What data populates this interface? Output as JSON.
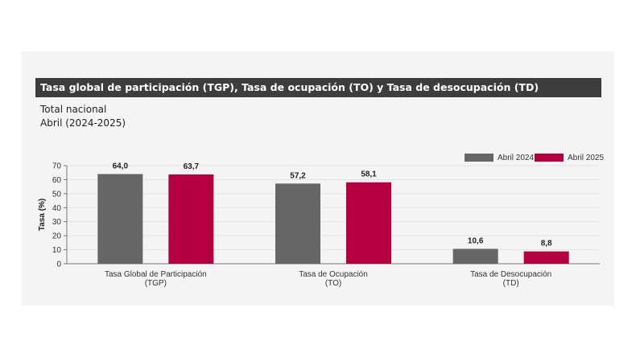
{
  "header": {
    "title": "Tasa global de participación (TGP), Tasa de ocupación (TO) y Tasa de desocupación (TD)",
    "subtitle_1": "Total nacional",
    "subtitle_2": "Abril (2024-2025)"
  },
  "colors": {
    "series_2024": "#666666",
    "series_2025": "#b5003f",
    "title_bg": "#3d3d3d",
    "panel_bg": "#f4f4f4"
  },
  "chart_data": {
    "type": "bar",
    "title": "Tasa global de participación (TGP), Tasa de ocupación (TO) y Tasa de desocupación (TD)",
    "xlabel": "",
    "ylabel": "Tasa (%)",
    "ylim": [
      0,
      70
    ],
    "yticks": [
      0,
      10,
      20,
      30,
      40,
      50,
      60,
      70
    ],
    "categories": [
      [
        "Tasa Global de Participación",
        "(TGP)"
      ],
      [
        "Tasa de Ocupación",
        "(TO)"
      ],
      [
        "Tasa de Desocupación",
        "(TD)"
      ]
    ],
    "series": [
      {
        "name": "Abril 2024",
        "values": [
          64.0,
          57.2,
          10.6
        ],
        "labels": [
          "64,0",
          "57,2",
          "10,6"
        ]
      },
      {
        "name": "Abril 2025",
        "values": [
          63.7,
          58.1,
          8.8
        ],
        "labels": [
          "63,7",
          "58,1",
          "8,8"
        ]
      }
    ],
    "legend": "top-right",
    "grid": true
  }
}
